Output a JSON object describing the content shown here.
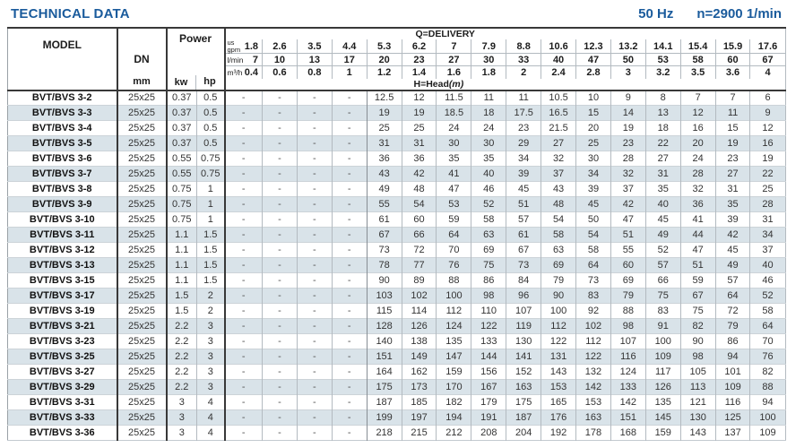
{
  "page": {
    "title": "TECHNICAL DATA",
    "frequency": "50 Hz",
    "speed": "n=2900 1/min"
  },
  "table": {
    "model_header": "MODEL",
    "dn_header": "DN",
    "dn_unit": "mm",
    "power_header": "Power",
    "power_units": [
      "kw",
      "hp"
    ],
    "delivery_label": "Q=DELIVERY",
    "head_label": "H=Head",
    "head_unit": "(m)",
    "delivery_rows": [
      {
        "unit_lines": [
          "us",
          "gpm"
        ],
        "values": [
          "1.8",
          "2.6",
          "3.5",
          "4.4",
          "5.3",
          "6.2",
          "7",
          "7.9",
          "8.8",
          "10.6",
          "12.3",
          "13.2",
          "14.1",
          "15.4",
          "15.9",
          "17.6"
        ]
      },
      {
        "unit_lines": [
          "l/min"
        ],
        "values": [
          "7",
          "10",
          "13",
          "17",
          "20",
          "23",
          "27",
          "30",
          "33",
          "40",
          "47",
          "50",
          "53",
          "58",
          "60",
          "67"
        ]
      },
      {
        "unit_lines": [
          "m³/h"
        ],
        "values": [
          "0.4",
          "0.6",
          "0.8",
          "1",
          "1.2",
          "1.4",
          "1.6",
          "1.8",
          "2",
          "2.4",
          "2.8",
          "3",
          "3.2",
          "3.5",
          "3.6",
          "4"
        ]
      }
    ],
    "rows": [
      {
        "model": "BVT/BVS 3-2",
        "dn": "25x25",
        "kw": "0.37",
        "hp": "0.5",
        "head": [
          "-",
          "-",
          "-",
          "-",
          "12.5",
          "12",
          "11.5",
          "11",
          "11",
          "10.5",
          "10",
          "9",
          "8",
          "7",
          "7",
          "6"
        ]
      },
      {
        "model": "BVT/BVS 3-3",
        "dn": "25x25",
        "kw": "0.37",
        "hp": "0.5",
        "head": [
          "-",
          "-",
          "-",
          "-",
          "19",
          "19",
          "18.5",
          "18",
          "17.5",
          "16.5",
          "15",
          "14",
          "13",
          "12",
          "11",
          "9"
        ]
      },
      {
        "model": "BVT/BVS 3-4",
        "dn": "25x25",
        "kw": "0.37",
        "hp": "0.5",
        "head": [
          "-",
          "-",
          "-",
          "-",
          "25",
          "25",
          "24",
          "24",
          "23",
          "21.5",
          "20",
          "19",
          "18",
          "16",
          "15",
          "12"
        ]
      },
      {
        "model": "BVT/BVS 3-5",
        "dn": "25x25",
        "kw": "0.37",
        "hp": "0.5",
        "head": [
          "-",
          "-",
          "-",
          "-",
          "31",
          "31",
          "30",
          "30",
          "29",
          "27",
          "25",
          "23",
          "22",
          "20",
          "19",
          "16"
        ]
      },
      {
        "model": "BVT/BVS 3-6",
        "dn": "25x25",
        "kw": "0.55",
        "hp": "0.75",
        "head": [
          "-",
          "-",
          "-",
          "-",
          "36",
          "36",
          "35",
          "35",
          "34",
          "32",
          "30",
          "28",
          "27",
          "24",
          "23",
          "19"
        ]
      },
      {
        "model": "BVT/BVS 3-7",
        "dn": "25x25",
        "kw": "0.55",
        "hp": "0.75",
        "head": [
          "-",
          "-",
          "-",
          "-",
          "43",
          "42",
          "41",
          "40",
          "39",
          "37",
          "34",
          "32",
          "31",
          "28",
          "27",
          "22"
        ]
      },
      {
        "model": "BVT/BVS 3-8",
        "dn": "25x25",
        "kw": "0.75",
        "hp": "1",
        "head": [
          "-",
          "-",
          "-",
          "-",
          "49",
          "48",
          "47",
          "46",
          "45",
          "43",
          "39",
          "37",
          "35",
          "32",
          "31",
          "25"
        ]
      },
      {
        "model": "BVT/BVS 3-9",
        "dn": "25x25",
        "kw": "0.75",
        "hp": "1",
        "head": [
          "-",
          "-",
          "-",
          "-",
          "55",
          "54",
          "53",
          "52",
          "51",
          "48",
          "45",
          "42",
          "40",
          "36",
          "35",
          "28"
        ]
      },
      {
        "model": "BVT/BVS 3-10",
        "dn": "25x25",
        "kw": "0.75",
        "hp": "1",
        "head": [
          "-",
          "-",
          "-",
          "-",
          "61",
          "60",
          "59",
          "58",
          "57",
          "54",
          "50",
          "47",
          "45",
          "41",
          "39",
          "31"
        ]
      },
      {
        "model": "BVT/BVS 3-11",
        "dn": "25x25",
        "kw": "1.1",
        "hp": "1.5",
        "head": [
          "-",
          "-",
          "-",
          "-",
          "67",
          "66",
          "64",
          "63",
          "61",
          "58",
          "54",
          "51",
          "49",
          "44",
          "42",
          "34"
        ]
      },
      {
        "model": "BVT/BVS 3-12",
        "dn": "25x25",
        "kw": "1.1",
        "hp": "1.5",
        "head": [
          "-",
          "-",
          "-",
          "-",
          "73",
          "72",
          "70",
          "69",
          "67",
          "63",
          "58",
          "55",
          "52",
          "47",
          "45",
          "37"
        ]
      },
      {
        "model": "BVT/BVS 3-13",
        "dn": "25x25",
        "kw": "1.1",
        "hp": "1.5",
        "head": [
          "-",
          "-",
          "-",
          "-",
          "78",
          "77",
          "76",
          "75",
          "73",
          "69",
          "64",
          "60",
          "57",
          "51",
          "49",
          "40"
        ]
      },
      {
        "model": "BVT/BVS 3-15",
        "dn": "25x25",
        "kw": "1.1",
        "hp": "1.5",
        "head": [
          "-",
          "-",
          "-",
          "-",
          "90",
          "89",
          "88",
          "86",
          "84",
          "79",
          "73",
          "69",
          "66",
          "59",
          "57",
          "46"
        ]
      },
      {
        "model": "BVT/BVS 3-17",
        "dn": "25x25",
        "kw": "1.5",
        "hp": "2",
        "head": [
          "-",
          "-",
          "-",
          "-",
          "103",
          "102",
          "100",
          "98",
          "96",
          "90",
          "83",
          "79",
          "75",
          "67",
          "64",
          "52"
        ]
      },
      {
        "model": "BVT/BVS 3-19",
        "dn": "25x25",
        "kw": "1.5",
        "hp": "2",
        "head": [
          "-",
          "-",
          "-",
          "-",
          "115",
          "114",
          "112",
          "110",
          "107",
          "100",
          "92",
          "88",
          "83",
          "75",
          "72",
          "58"
        ]
      },
      {
        "model": "BVT/BVS 3-21",
        "dn": "25x25",
        "kw": "2.2",
        "hp": "3",
        "head": [
          "-",
          "-",
          "-",
          "-",
          "128",
          "126",
          "124",
          "122",
          "119",
          "112",
          "102",
          "98",
          "91",
          "82",
          "79",
          "64"
        ]
      },
      {
        "model": "BVT/BVS 3-23",
        "dn": "25x25",
        "kw": "2.2",
        "hp": "3",
        "head": [
          "-",
          "-",
          "-",
          "-",
          "140",
          "138",
          "135",
          "133",
          "130",
          "122",
          "112",
          "107",
          "100",
          "90",
          "86",
          "70"
        ]
      },
      {
        "model": "BVT/BVS 3-25",
        "dn": "25x25",
        "kw": "2.2",
        "hp": "3",
        "head": [
          "-",
          "-",
          "-",
          "-",
          "151",
          "149",
          "147",
          "144",
          "141",
          "131",
          "122",
          "116",
          "109",
          "98",
          "94",
          "76"
        ]
      },
      {
        "model": "BVT/BVS 3-27",
        "dn": "25x25",
        "kw": "2.2",
        "hp": "3",
        "head": [
          "-",
          "-",
          "-",
          "-",
          "164",
          "162",
          "159",
          "156",
          "152",
          "143",
          "132",
          "124",
          "117",
          "105",
          "101",
          "82"
        ]
      },
      {
        "model": "BVT/BVS 3-29",
        "dn": "25x25",
        "kw": "2.2",
        "hp": "3",
        "head": [
          "-",
          "-",
          "-",
          "-",
          "175",
          "173",
          "170",
          "167",
          "163",
          "153",
          "142",
          "133",
          "126",
          "113",
          "109",
          "88"
        ]
      },
      {
        "model": "BVT/BVS 3-31",
        "dn": "25x25",
        "kw": "3",
        "hp": "4",
        "head": [
          "-",
          "-",
          "-",
          "-",
          "187",
          "185",
          "182",
          "179",
          "175",
          "165",
          "153",
          "142",
          "135",
          "121",
          "116",
          "94"
        ]
      },
      {
        "model": "BVT/BVS 3-33",
        "dn": "25x25",
        "kw": "3",
        "hp": "4",
        "head": [
          "-",
          "-",
          "-",
          "-",
          "199",
          "197",
          "194",
          "191",
          "187",
          "176",
          "163",
          "151",
          "145",
          "130",
          "125",
          "100"
        ]
      },
      {
        "model": "BVT/BVS 3-36",
        "dn": "25x25",
        "kw": "3",
        "hp": "4",
        "head": [
          "-",
          "-",
          "-",
          "-",
          "218",
          "215",
          "212",
          "208",
          "204",
          "192",
          "178",
          "168",
          "159",
          "143",
          "137",
          "109"
        ]
      }
    ]
  }
}
